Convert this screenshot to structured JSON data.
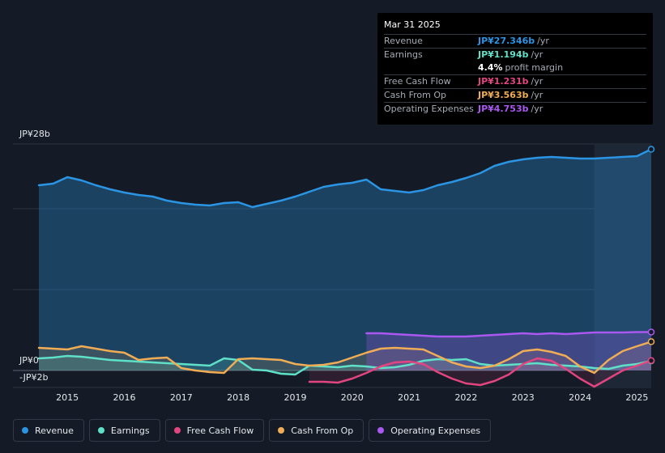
{
  "tooltip": {
    "date": "Mar 31 2025",
    "rows": [
      {
        "label": "Revenue",
        "value": "JP¥27.346b",
        "unit": "/yr",
        "color": "#2b95e4"
      },
      {
        "label": "Earnings",
        "value": "JP¥1.194b",
        "unit": "/yr",
        "color": "#5fe0c8"
      },
      {
        "label": "",
        "value": "4.4%",
        "unit": "profit margin",
        "color": "#ffffff"
      },
      {
        "label": "Free Cash Flow",
        "value": "JP¥1.231b",
        "unit": "/yr",
        "color": "#e2457f"
      },
      {
        "label": "Cash From Op",
        "value": "JP¥3.563b",
        "unit": "/yr",
        "color": "#f0ad55"
      },
      {
        "label": "Operating Expenses",
        "value": "JP¥4.753b",
        "unit": "/yr",
        "color": "#a958f0"
      }
    ]
  },
  "legend": [
    {
      "label": "Revenue",
      "color": "#2b95e4"
    },
    {
      "label": "Earnings",
      "color": "#5fe0c8"
    },
    {
      "label": "Free Cash Flow",
      "color": "#e2457f"
    },
    {
      "label": "Cash From Op",
      "color": "#f0ad55"
    },
    {
      "label": "Operating Expenses",
      "color": "#a958f0"
    }
  ],
  "chart_data": {
    "type": "line",
    "title": "",
    "y_top_label": "JP¥28b",
    "y_zero_label": "JP¥0",
    "y_bottom_label": "-JP¥2b",
    "ylim": [
      -2.5,
      28
    ],
    "xlim": [
      2014.5,
      2025.25
    ],
    "x_ticks": [
      2015,
      2016,
      2017,
      2018,
      2019,
      2020,
      2021,
      2022,
      2023,
      2024,
      2025
    ],
    "x_tick_labels": [
      "2015",
      "2016",
      "2017",
      "2018",
      "2019",
      "2020",
      "2021",
      "2022",
      "2023",
      "2024",
      "2025"
    ],
    "highlight_from": 2024.25,
    "series": [
      {
        "name": "Revenue",
        "color": "#2b95e4",
        "x": [
          2014.5,
          2014.75,
          2015.0,
          2015.25,
          2015.5,
          2015.75,
          2016.0,
          2016.25,
          2016.5,
          2016.75,
          2017.0,
          2017.25,
          2017.5,
          2017.75,
          2018.0,
          2018.25,
          2018.5,
          2018.75,
          2019.0,
          2019.25,
          2019.5,
          2019.75,
          2020.0,
          2020.25,
          2020.5,
          2020.75,
          2021.0,
          2021.25,
          2021.5,
          2021.75,
          2022.0,
          2022.25,
          2022.5,
          2022.75,
          2023.0,
          2023.25,
          2023.5,
          2023.75,
          2024.0,
          2024.25,
          2024.5,
          2024.75,
          2025.0,
          2025.25
        ],
        "values": [
          22.9,
          23.1,
          23.9,
          23.5,
          22.9,
          22.4,
          22.0,
          21.7,
          21.5,
          21.0,
          20.7,
          20.5,
          20.4,
          20.7,
          20.8,
          20.2,
          20.6,
          21.0,
          21.5,
          22.1,
          22.7,
          23.0,
          23.2,
          23.6,
          22.4,
          22.2,
          22.0,
          22.3,
          22.9,
          23.3,
          23.8,
          24.4,
          25.3,
          25.8,
          26.1,
          26.3,
          26.4,
          26.3,
          26.2,
          26.2,
          26.3,
          26.4,
          26.5,
          27.346
        ]
      },
      {
        "name": "Earnings",
        "color": "#5fe0c8",
        "x": [
          2014.5,
          2014.75,
          2015.0,
          2015.25,
          2015.5,
          2015.75,
          2016.0,
          2016.25,
          2016.5,
          2016.75,
          2017.0,
          2017.25,
          2017.5,
          2017.75,
          2018.0,
          2018.25,
          2018.5,
          2018.75,
          2019.0,
          2019.25,
          2019.5,
          2019.75,
          2020.0,
          2020.25,
          2020.5,
          2020.75,
          2021.0,
          2021.25,
          2021.5,
          2021.75,
          2022.0,
          2022.25,
          2022.5,
          2022.75,
          2023.0,
          2023.25,
          2023.5,
          2023.75,
          2024.0,
          2024.25,
          2024.5,
          2024.75,
          2025.0,
          2025.25
        ],
        "values": [
          1.5,
          1.6,
          1.8,
          1.7,
          1.5,
          1.3,
          1.2,
          1.1,
          1.0,
          0.9,
          0.8,
          0.7,
          0.6,
          1.5,
          1.3,
          0.1,
          0.0,
          -0.4,
          -0.5,
          0.6,
          0.5,
          0.4,
          0.6,
          0.5,
          0.3,
          0.4,
          0.7,
          1.2,
          1.4,
          1.3,
          1.4,
          0.8,
          0.6,
          0.7,
          0.8,
          0.9,
          0.7,
          0.6,
          0.5,
          0.3,
          0.2,
          0.6,
          0.8,
          1.194
        ]
      },
      {
        "name": "Free Cash Flow",
        "color": "#e2457f",
        "x": [
          2019.25,
          2019.5,
          2019.75,
          2020.0,
          2020.25,
          2020.5,
          2020.75,
          2021.0,
          2021.25,
          2021.5,
          2021.75,
          2022.0,
          2022.25,
          2022.5,
          2022.75,
          2023.0,
          2023.25,
          2023.5,
          2023.75,
          2024.0,
          2024.25,
          2024.5,
          2024.75,
          2025.0,
          2025.25
        ],
        "values": [
          -1.4,
          -1.4,
          -1.5,
          -1.0,
          -0.3,
          0.5,
          1.0,
          1.1,
          0.8,
          -0.2,
          -1.0,
          -1.6,
          -1.8,
          -1.3,
          -0.5,
          0.8,
          1.5,
          1.2,
          0.2,
          -1.0,
          -2.0,
          -1.0,
          0.0,
          0.6,
          1.231
        ]
      },
      {
        "name": "Cash From Op",
        "color": "#f0ad55",
        "x": [
          2014.5,
          2014.75,
          2015.0,
          2015.25,
          2015.5,
          2015.75,
          2016.0,
          2016.25,
          2016.5,
          2016.75,
          2017.0,
          2017.25,
          2017.5,
          2017.75,
          2018.0,
          2018.25,
          2018.5,
          2018.75,
          2019.0,
          2019.25,
          2019.5,
          2019.75,
          2020.0,
          2020.25,
          2020.5,
          2020.75,
          2021.0,
          2021.25,
          2021.5,
          2021.75,
          2022.0,
          2022.25,
          2022.5,
          2022.75,
          2023.0,
          2023.25,
          2023.5,
          2023.75,
          2024.0,
          2024.25,
          2024.5,
          2024.75,
          2025.0,
          2025.25
        ],
        "values": [
          2.8,
          2.7,
          2.6,
          3.0,
          2.7,
          2.4,
          2.2,
          1.3,
          1.5,
          1.6,
          0.3,
          0.0,
          -0.2,
          -0.3,
          1.4,
          1.5,
          1.4,
          1.3,
          0.8,
          0.6,
          0.7,
          1.0,
          1.6,
          2.2,
          2.7,
          2.8,
          2.7,
          2.6,
          1.8,
          1.0,
          0.5,
          0.3,
          0.6,
          1.4,
          2.4,
          2.6,
          2.3,
          1.8,
          0.5,
          -0.3,
          1.3,
          2.4,
          3.0,
          3.563
        ]
      },
      {
        "name": "Operating Expenses",
        "color": "#a958f0",
        "x": [
          2020.25,
          2020.5,
          2020.75,
          2021.0,
          2021.25,
          2021.5,
          2021.75,
          2022.0,
          2022.25,
          2022.5,
          2022.75,
          2023.0,
          2023.25,
          2023.5,
          2023.75,
          2024.0,
          2024.25,
          2024.5,
          2024.75,
          2025.0,
          2025.25
        ],
        "values": [
          4.6,
          4.6,
          4.5,
          4.4,
          4.3,
          4.2,
          4.2,
          4.2,
          4.3,
          4.4,
          4.5,
          4.6,
          4.5,
          4.6,
          4.5,
          4.6,
          4.7,
          4.7,
          4.7,
          4.75,
          4.753
        ]
      }
    ]
  }
}
